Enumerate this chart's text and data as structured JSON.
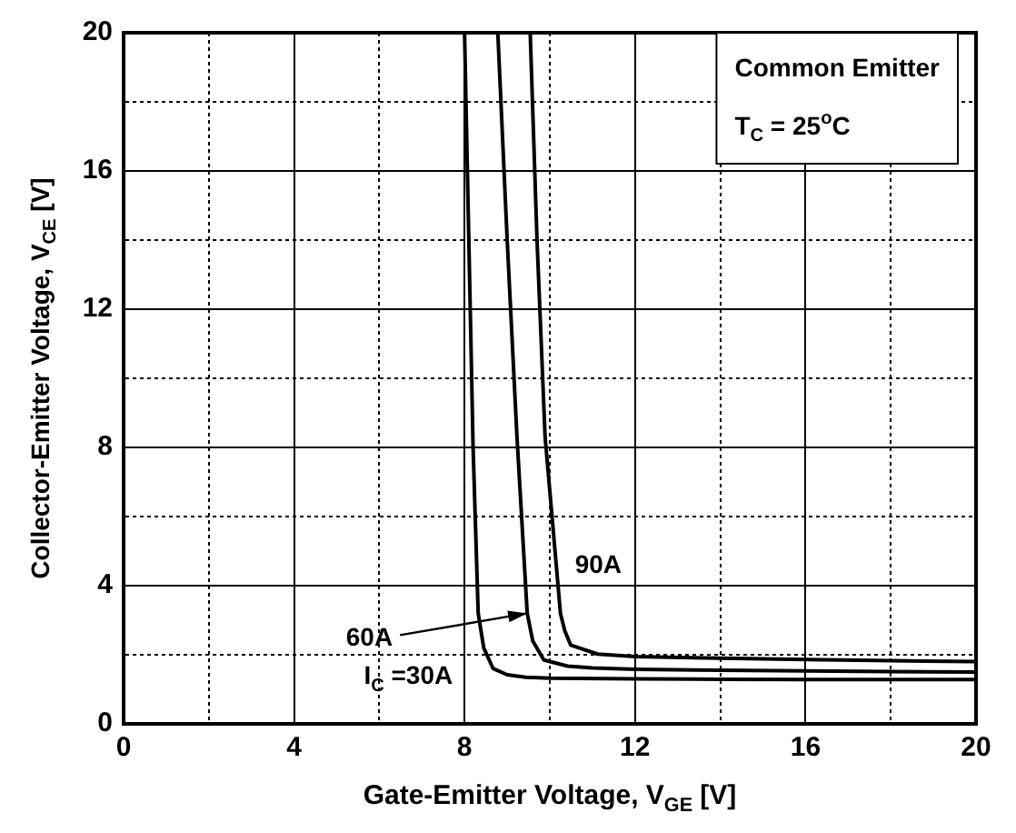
{
  "chart_data": {
    "type": "line",
    "xlabel": "Gate-Emitter Voltage, V$_{GE}$ [V]",
    "ylabel": "Collector-Emitter Voltage, V$_{CE}$ [V]",
    "xlim": [
      0,
      20
    ],
    "ylim": [
      0,
      20
    ],
    "xticks": [
      0,
      {
        "value": 2,
        "label": null
      },
      4,
      {
        "value": 6,
        "label": null
      },
      8,
      {
        "value": 10,
        "label": null
      },
      12,
      {
        "value": 14,
        "label": null
      },
      16,
      {
        "value": 18,
        "label": null
      },
      20
    ],
    "yticks": [
      0,
      {
        "value": 2,
        "label": null
      },
      4,
      {
        "value": 6,
        "label": null
      },
      8,
      {
        "value": 10,
        "label": null
      },
      12,
      {
        "value": 14,
        "label": null
      },
      16,
      {
        "value": 18,
        "label": null
      },
      20
    ],
    "grid": true,
    "line_style": "solid",
    "marker": "none",
    "series": [
      {
        "name": "I$_{C}$ =30A",
        "color": "#000000",
        "x": [
          8.0,
          8.1,
          8.2,
          8.32,
          8.45,
          8.67,
          9.0,
          9.44,
          10,
          12,
          14,
          16,
          18,
          20
        ],
        "values": [
          20,
          14,
          8,
          3.2,
          2.2,
          1.6,
          1.42,
          1.35,
          1.32,
          1.3,
          1.29,
          1.28,
          1.28,
          1.28
        ]
      },
      {
        "name": "60A",
        "color": "#000000",
        "x": [
          8.78,
          9.0,
          9.23,
          9.47,
          9.6,
          9.86,
          10.42,
          11,
          12,
          14,
          16,
          18,
          20
        ],
        "values": [
          20,
          14,
          8.3,
          3.2,
          2.4,
          1.85,
          1.67,
          1.62,
          1.58,
          1.55,
          1.53,
          1.51,
          1.5
        ]
      },
      {
        "name": "90A",
        "color": "#000000",
        "x": [
          9.54,
          9.7,
          9.89,
          10.25,
          10.35,
          10.49,
          11.12,
          12,
          14,
          16,
          18,
          20
        ],
        "values": [
          20,
          14,
          8.3,
          3.2,
          2.7,
          2.28,
          2.02,
          1.95,
          1.9,
          1.86,
          1.83,
          1.8
        ]
      }
    ],
    "annotations": [
      "Common Emitter",
      "T$_{C}$ = 25$^{o}$C"
    ]
  }
}
